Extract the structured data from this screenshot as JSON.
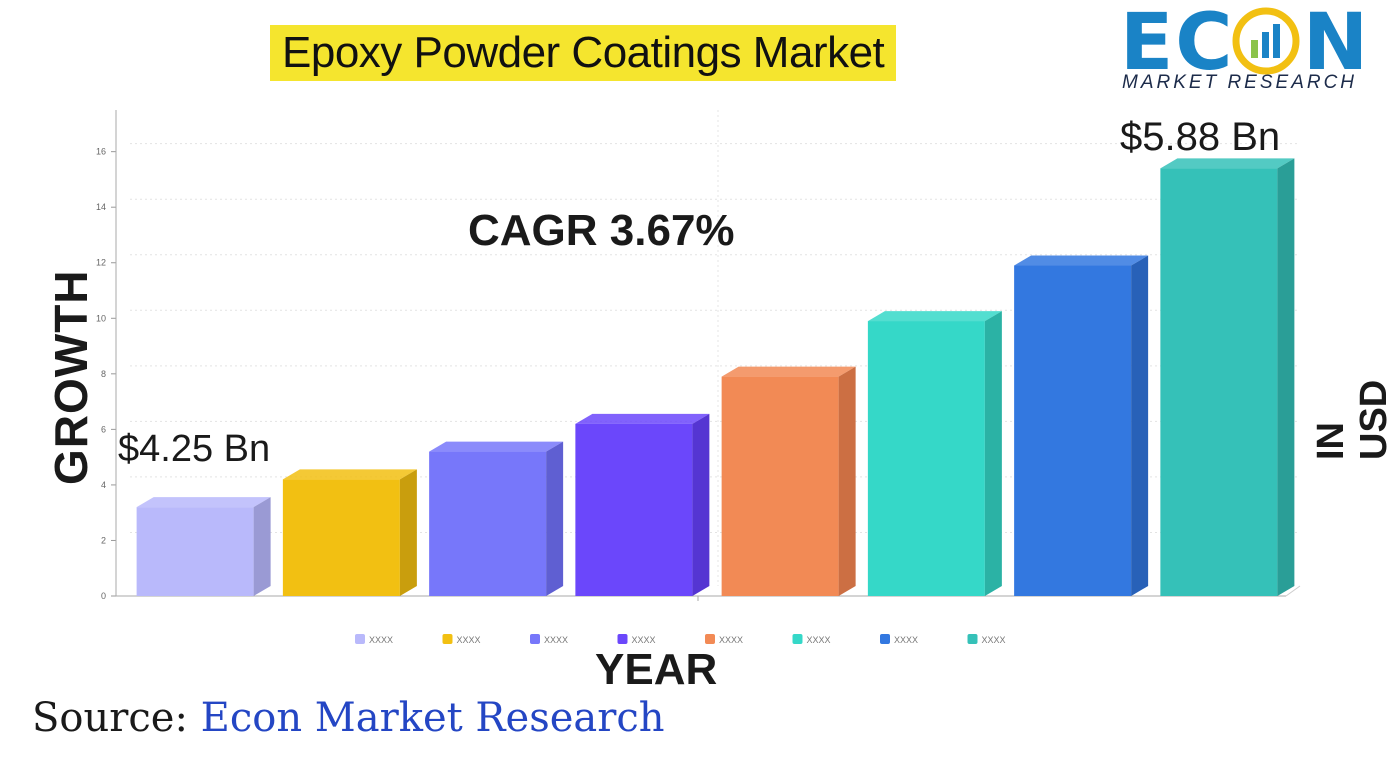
{
  "title": "Epoxy Powder Coatings Market",
  "logo": {
    "word": "ECON",
    "subtitle": "MARKET RESEARCH"
  },
  "labels": {
    "y_axis": "GROWTH",
    "y_axis_right": "IN USD",
    "x_axis": "YEAR",
    "cagr": "CAGR 3.67%",
    "start_value": "$4.25 Bn",
    "end_value": "$5.88 Bn"
  },
  "source": {
    "prefix": "Source:",
    "brand": " Econ Market Research"
  },
  "chart_data": {
    "type": "bar",
    "categories": [
      "XXXX",
      "XXXX",
      "XXXX",
      "XXXX",
      "XXXX",
      "XXXX",
      "XXXX",
      "XXXX"
    ],
    "values": [
      3.2,
      4.2,
      5.2,
      6.2,
      7.9,
      9.9,
      11.9,
      15.4
    ],
    "colors": [
      "#b9b9fb",
      "#f2c012",
      "#7777fa",
      "#6b47fb",
      "#f28a55",
      "#35d8c8",
      "#3378e0",
      "#35c1b8"
    ],
    "side_colors": [
      "#9a9ad4",
      "#c99e0d",
      "#5f5fd2",
      "#5535d2",
      "#cc6f43",
      "#2bb2a5",
      "#2861b8",
      "#2a9e97"
    ],
    "yticks": [
      0,
      2,
      4,
      6,
      8,
      10,
      12,
      14,
      16
    ],
    "ylim": [
      0,
      17.5
    ],
    "grid": true,
    "legend_position": "bottom"
  }
}
